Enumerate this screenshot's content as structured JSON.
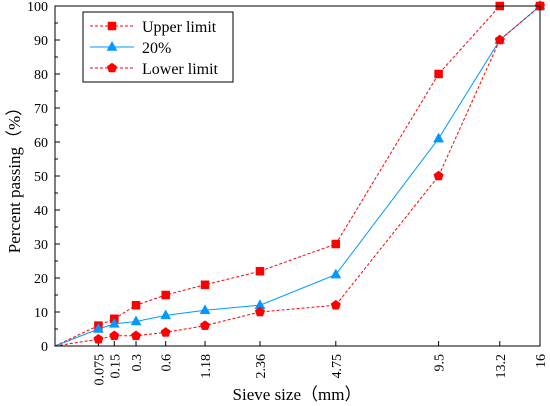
{
  "chart_data": {
    "type": "line",
    "xlabel": "Sieve size（mm）",
    "ylabel": "Percent passing（%）",
    "x_ticks": [
      "0.075",
      "0.15",
      "0.3",
      "0.6",
      "1.18",
      "2.36",
      "4.75",
      "9.5",
      "13.2",
      "16"
    ],
    "x": [
      0,
      0.075,
      0.15,
      0.3,
      0.6,
      1.18,
      2.36,
      4.75,
      9.5,
      13.2,
      16
    ],
    "x_scale": "power 0.45",
    "xlim": [
      0,
      16
    ],
    "ylim": [
      0,
      100
    ],
    "y_ticks": [
      "0",
      "10",
      "20",
      "30",
      "40",
      "50",
      "60",
      "70",
      "80",
      "90",
      "100"
    ],
    "grid": false,
    "legend": "top-left",
    "series": [
      {
        "name": "Upper limit",
        "color": "#ff0000",
        "marker": "square",
        "line": "dashed",
        "values": [
          0,
          6,
          8,
          12,
          15,
          18,
          22,
          30,
          80,
          100,
          100
        ]
      },
      {
        "name": "20%",
        "color": "#0099ff",
        "marker": "triangle",
        "line": "solid",
        "values": [
          0,
          5,
          6.5,
          7.2,
          9,
          10.5,
          12,
          21,
          61,
          90,
          100
        ]
      },
      {
        "name": "Lower limit",
        "color": "#ff0000",
        "marker": "pentagon",
        "line": "dashed",
        "values": [
          0,
          2,
          3,
          3,
          4,
          6,
          10,
          12,
          50,
          90,
          100
        ]
      }
    ]
  }
}
